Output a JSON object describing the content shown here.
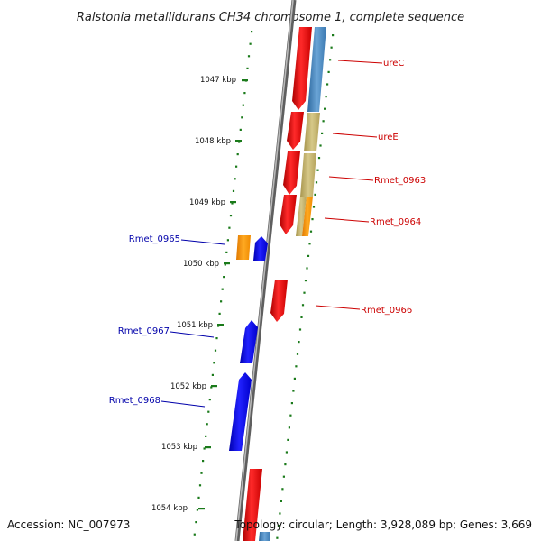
{
  "title": "Ralstonia metallidurans CH34 chromosome 1, complete sequence",
  "footer": {
    "accession": "Accession: NC_007973",
    "topology": "Topology: circular; Length: 3,928,089 bp; Genes: 3,669"
  },
  "ruler_labels": [
    "1047 kbp",
    "1048 kbp",
    "1049 kbp",
    "1050 kbp",
    "1051 kbp",
    "1052 kbp",
    "1053 kbp",
    "1054 kbp"
  ],
  "gene_labels": {
    "ureC": "ureC",
    "ureE": "ureE",
    "rmet_0963": "Rmet_0963",
    "rmet_0964": "Rmet_0964",
    "rmet_0965": "Rmet_0965",
    "rmet_0966": "Rmet_0966",
    "rmet_0967": "Rmet_0967",
    "rmet_0968": "Rmet_0968"
  },
  "colors": {
    "forward_gene": "#ee0000",
    "reverse_gene": "#0000ee",
    "orange_gene": "#ff9900",
    "khaki_segment": "#c8b670",
    "blue_segment": "#4b86bd",
    "tick": "#1a7a1a",
    "backbone": "#808080",
    "label_red": "#cc0000",
    "label_blue": "#0000aa"
  }
}
